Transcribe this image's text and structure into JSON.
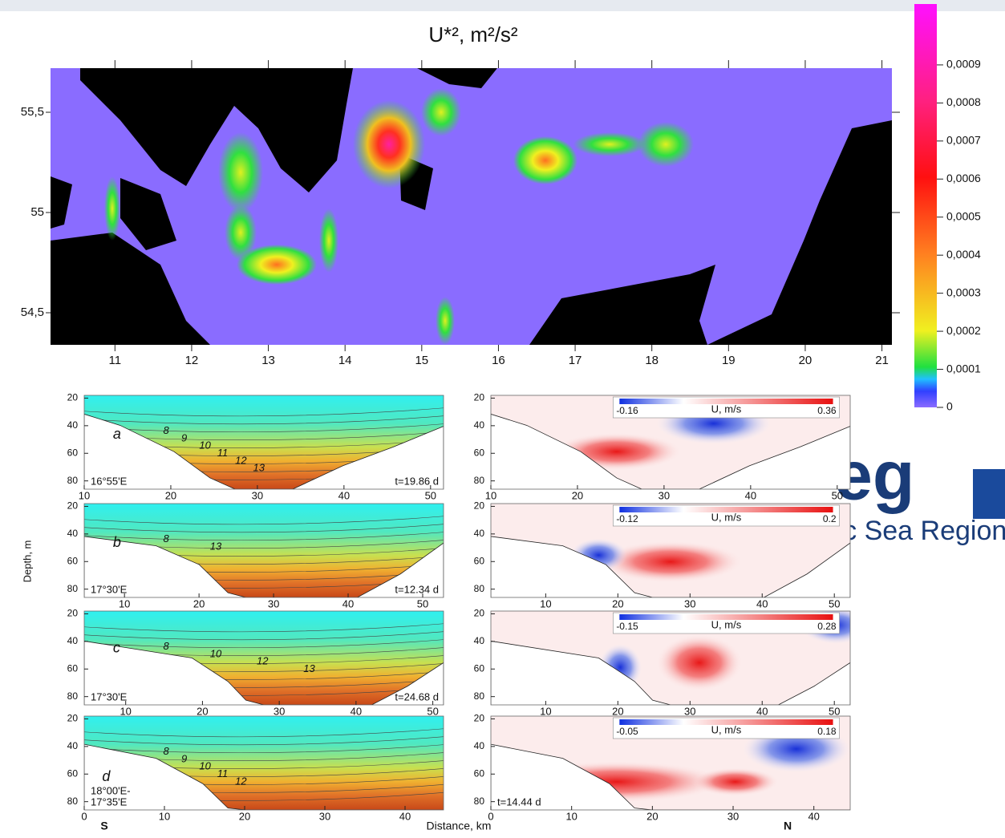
{
  "chart_data": [
    {
      "type": "heatmap",
      "title": "U*², m²/s²",
      "xlim": [
        10.16,
        21.13
      ],
      "xticks": [
        11,
        12,
        13,
        14,
        15,
        16,
        17,
        18,
        19,
        20,
        21
      ],
      "ylim": [
        54.34,
        55.72
      ],
      "yticks": [
        {
          "value": 54.5,
          "label": "54,5"
        },
        55,
        {
          "value": 55.5,
          "label": "55,5"
        }
      ],
      "colorbar": {
        "lim": [
          0,
          0.00106
        ],
        "ticks": [
          0,
          {
            "value": 0.0001,
            "label": "0,0001"
          },
          {
            "value": 0.0002,
            "label": "0,0002"
          },
          {
            "value": 0.0003,
            "label": "0,0003"
          },
          {
            "value": 0.0004,
            "label": "0,0004"
          },
          {
            "value": 0.0005,
            "label": "0,0005"
          },
          {
            "value": 0.0006,
            "label": "0,0006"
          },
          {
            "value": 0.0007,
            "label": "0,0007"
          },
          {
            "value": 0.0008,
            "label": "0,0008"
          },
          {
            "value": 0.0009,
            "label": "0,0009"
          }
        ]
      }
    },
    {
      "type": "section",
      "y_label": "Depth, m",
      "x_label": "Distance, km",
      "start": "S",
      "end": "N",
      "u_label": "U, m/s",
      "ylim": [
        18,
        86
      ],
      "yticks": [
        20,
        40,
        60,
        80
      ],
      "panels": [
        {
          "label": "a",
          "location": [
            "16°55'E"
          ],
          "temperature": {
            "xlim": [
              10,
              51.5
            ],
            "xticks": [
              10,
              20,
              30,
              40,
              50
            ],
            "isotherms": [
              8,
              9,
              10,
              11,
              12,
              13
            ],
            "time": "t=19.86 d"
          },
          "velocity": {
            "xlim": [
              10,
              51.5
            ],
            "xticks": [
              10,
              20,
              30,
              40,
              50
            ],
            "ulim": [
              -0.16,
              0.36
            ]
          }
        },
        {
          "label": "b",
          "location": [
            "17°30'E"
          ],
          "temperature": {
            "xlim": [
              4.6,
              52.8
            ],
            "xticks": [
              10,
              20,
              30,
              40,
              50
            ],
            "isotherms": [
              8,
              13
            ],
            "time": "t=12.34 d"
          },
          "velocity": {
            "xlim": [
              2.4,
              52.2
            ],
            "xticks": [
              10,
              20,
              30,
              40,
              50
            ],
            "ulim": [
              -0.12,
              0.2
            ]
          }
        },
        {
          "label": "c",
          "location": [
            "17°30'E"
          ],
          "temperature": {
            "xlim": [
              4.6,
              51.4
            ],
            "xticks": [
              10,
              20,
              30,
              40,
              50
            ],
            "isotherms": [
              8,
              10,
              12,
              13
            ],
            "time": "t=24.68 d"
          },
          "velocity": {
            "xlim": [
              2.4,
              52.2
            ],
            "xticks": [
              10,
              20,
              30,
              40,
              50
            ],
            "ulim": [
              -0.15,
              0.28
            ]
          }
        },
        {
          "label": "d",
          "location": [
            "18°00'E-",
            "17°35'E"
          ],
          "temperature": {
            "xlim": [
              0,
              44.8
            ],
            "xticks": [
              0,
              10,
              20,
              30,
              40
            ],
            "isotherms": [
              8,
              9,
              10,
              11,
              12
            ]
          },
          "velocity": {
            "xlim": [
              0,
              44.5
            ],
            "xticks": [
              0,
              10,
              20,
              30,
              40
            ],
            "ulim": [
              -0.05,
              0.18
            ],
            "time": "t=14.44 d"
          }
        }
      ]
    }
  ],
  "logo": {
    "text": "eg",
    "subtitle": "Baltic Sea Region"
  }
}
